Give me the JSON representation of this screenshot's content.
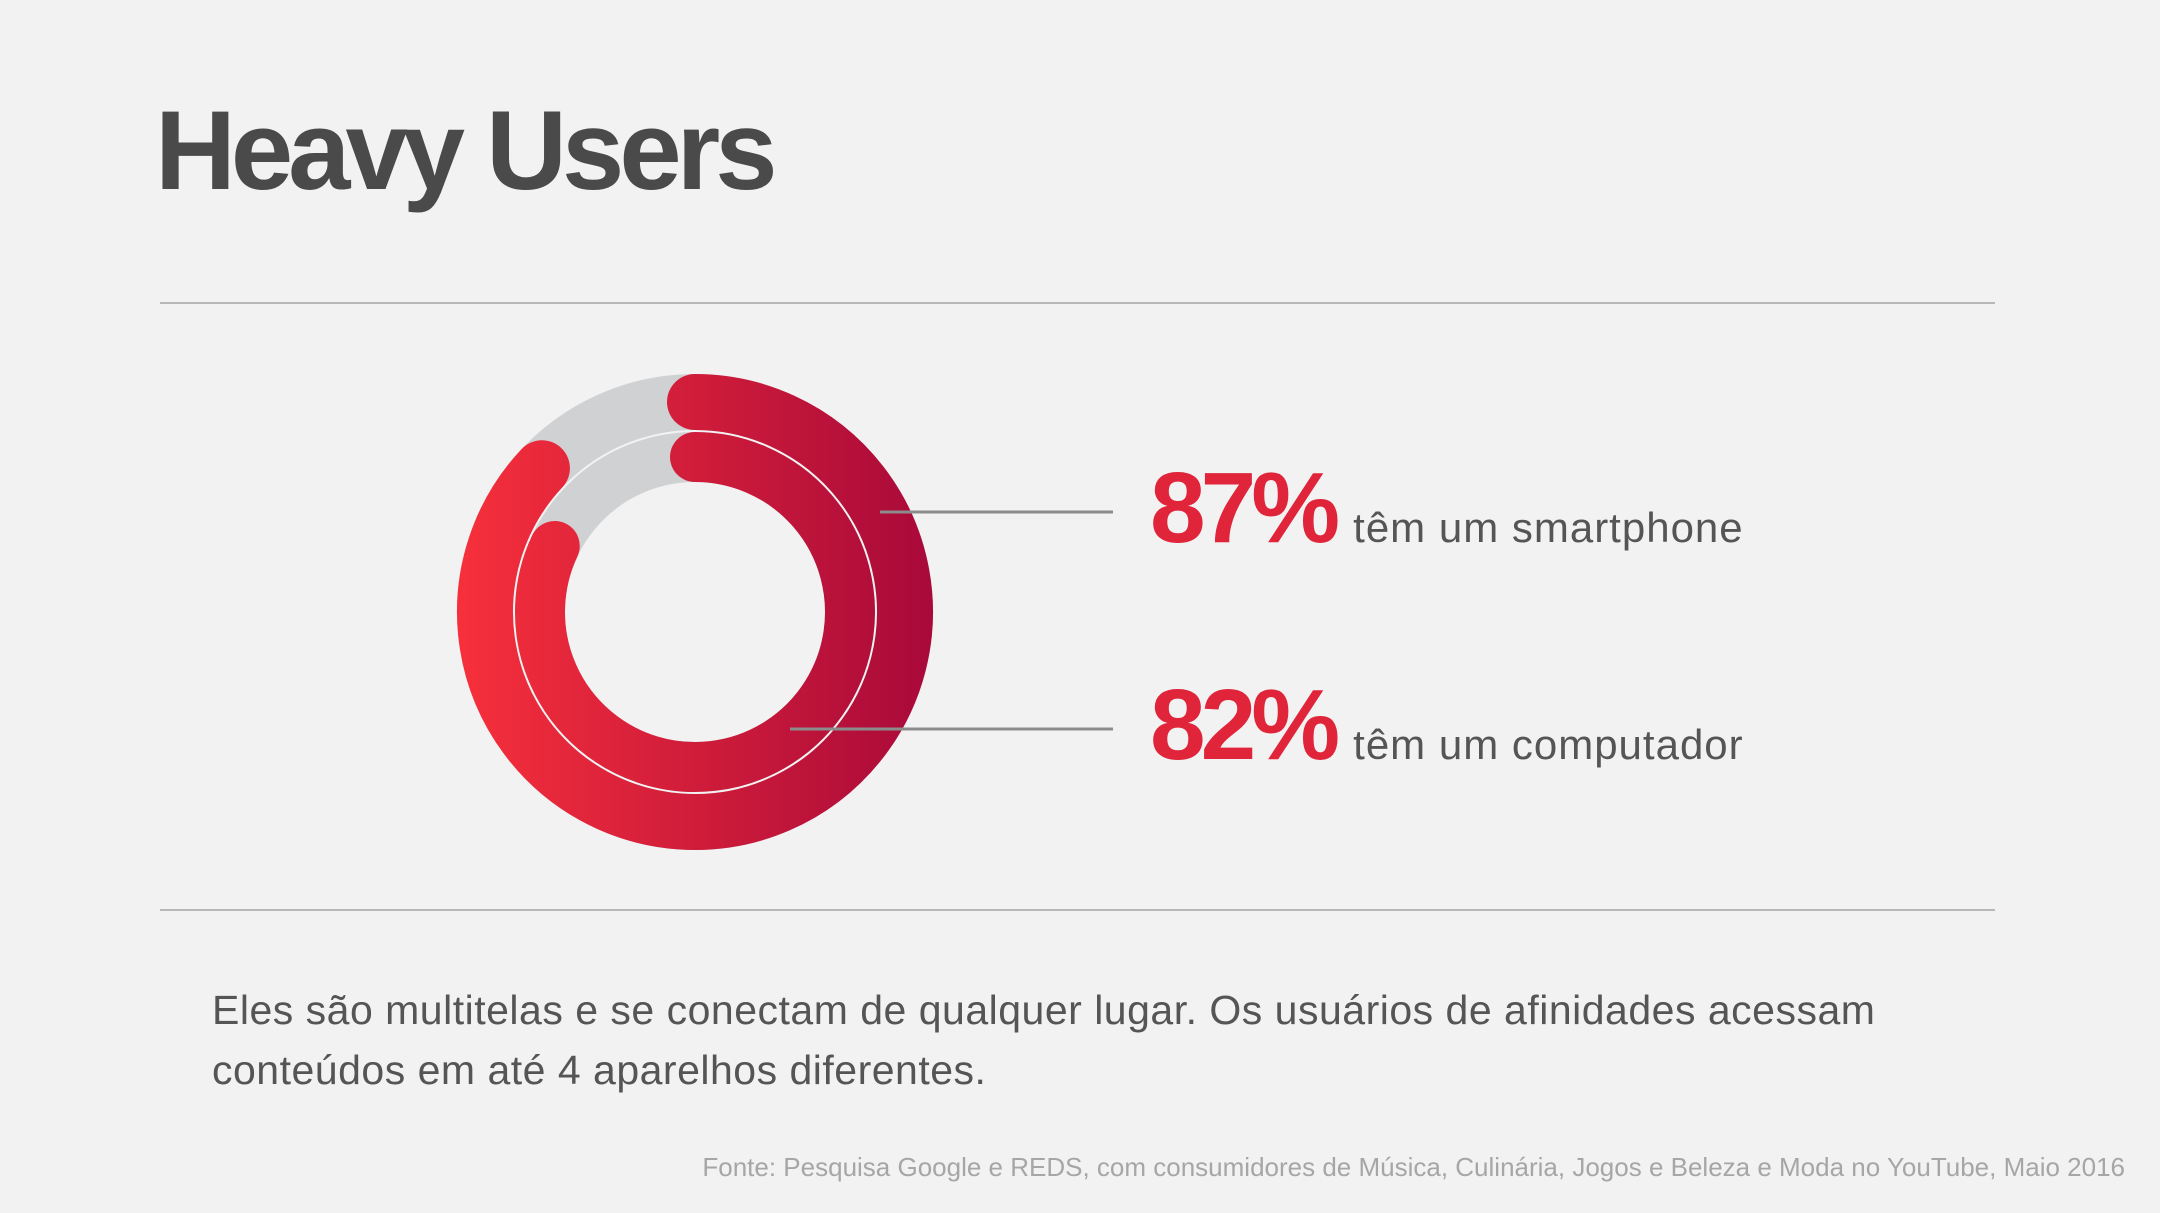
{
  "slide": {
    "title": "Heavy Users",
    "body_text": "Eles são multitelas e se conectam de qualquer lugar. Os usuários de afinidades acessam conteúdos em até 4 aparelhos diferentes.",
    "source": "Fonte:  Pesquisa Google e REDS, com consumidores de Música, Culinária, Jogos e Beleza e Moda no YouTube, Maio 2016"
  },
  "chart_data": {
    "type": "radial-progress",
    "series": [
      {
        "name": "smartphone",
        "value": 87,
        "value_label": "87%",
        "label": "têm um smartphone"
      },
      {
        "name": "computador",
        "value": 82,
        "value_label": "82%",
        "label": "têm um computador"
      }
    ],
    "max": 100,
    "colors": {
      "gradient_start": "#f7303b",
      "gradient_end": "#a8093a",
      "track": "#d0d1d3",
      "accent_text": "#e0243a",
      "leader_line": "#8c8c8c"
    }
  }
}
